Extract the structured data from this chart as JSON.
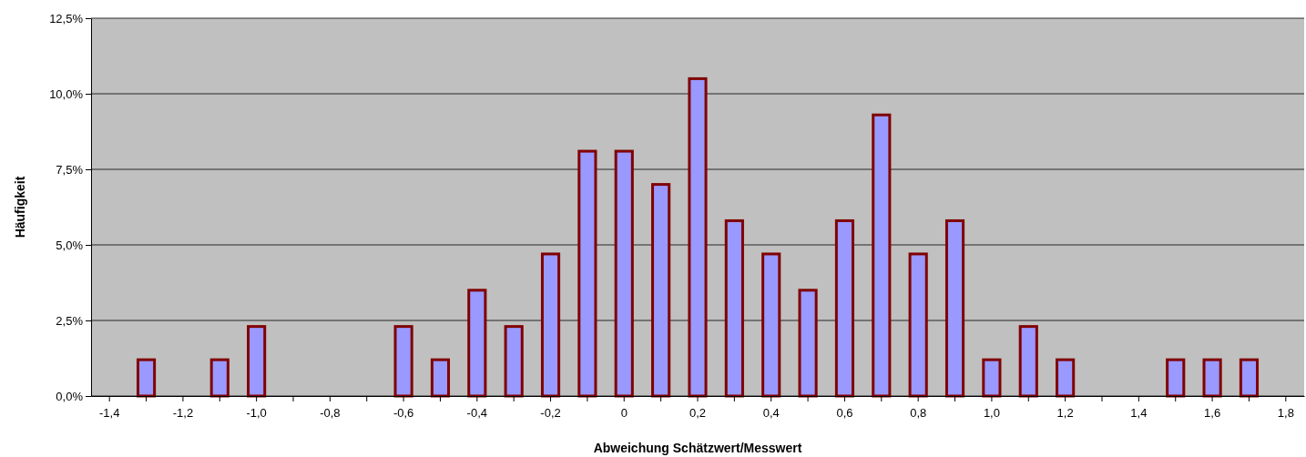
{
  "chart_data": {
    "type": "bar",
    "xlabel": "Abweichung Schätzwert/Messwert",
    "ylabel": "Häufigkeit",
    "categories": [
      "-1,4",
      null,
      "-1,2",
      null,
      "-1,0",
      null,
      "-0,8",
      null,
      "-0,6",
      null,
      "-0,4",
      null,
      "-0,2",
      null,
      "0",
      null,
      "0,2",
      null,
      "0,4",
      null,
      "0,6",
      null,
      "0,8",
      null,
      "1,0",
      null,
      "1,2",
      null,
      "1,4",
      null,
      "1,6",
      null,
      "1,8"
    ],
    "values": [
      0,
      1.2,
      0,
      1.2,
      2.3,
      0,
      0,
      0,
      2.3,
      1.2,
      3.5,
      2.3,
      4.7,
      8.1,
      8.1,
      7.0,
      10.5,
      5.8,
      4.7,
      3.5,
      5.8,
      9.3,
      4.7,
      5.8,
      1.2,
      2.3,
      1.2,
      0,
      0,
      1.2,
      1.2,
      1.2,
      0
    ],
    "color": "#9999ff",
    "ylim": [
      0,
      12.5
    ],
    "yticks": [
      {
        "value": 0,
        "label": "0,0%"
      },
      {
        "value": 2.5,
        "label": "2,5%"
      },
      {
        "value": 5,
        "label": "5,0%"
      },
      {
        "value": 7.5,
        "label": "7,5%"
      },
      {
        "value": 10,
        "label": "10,0%"
      },
      {
        "value": 12.5,
        "label": "12,5%"
      }
    ],
    "grid": "y"
  }
}
